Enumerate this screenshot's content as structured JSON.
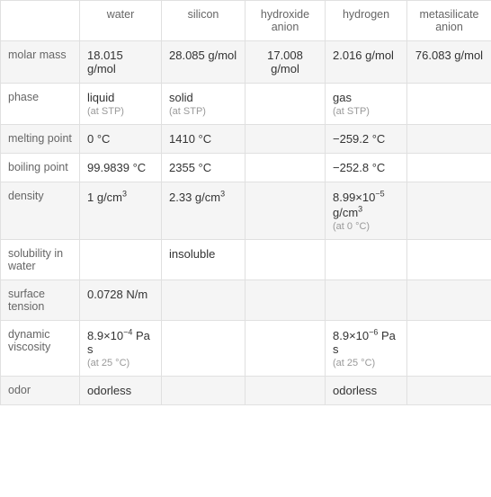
{
  "columns": [
    "water",
    "silicon",
    "hydroxide anion",
    "hydrogen",
    "metasilicate anion"
  ],
  "rows": [
    {
      "label": "molar mass",
      "cells": [
        {
          "main": "18.015 g/mol"
        },
        {
          "main": "28.085 g/mol"
        },
        {
          "main": "17.008 g/mol",
          "centered": true
        },
        {
          "main": "2.016 g/mol"
        },
        {
          "main": "76.083 g/mol",
          "centered": true
        }
      ]
    },
    {
      "label": "phase",
      "cells": [
        {
          "main": "liquid",
          "sub": "(at STP)"
        },
        {
          "main": "solid",
          "sub": "(at STP)"
        },
        {
          "main": ""
        },
        {
          "main": "gas",
          "sub": "(at STP)"
        },
        {
          "main": ""
        }
      ]
    },
    {
      "label": "melting point",
      "cells": [
        {
          "main": "0 °C"
        },
        {
          "main": "1410 °C"
        },
        {
          "main": ""
        },
        {
          "main": "−259.2 °C"
        },
        {
          "main": ""
        }
      ]
    },
    {
      "label": "boiling point",
      "cells": [
        {
          "main": "99.9839 °C"
        },
        {
          "main": "2355 °C"
        },
        {
          "main": ""
        },
        {
          "main": "−252.8 °C"
        },
        {
          "main": ""
        }
      ]
    },
    {
      "label": "density",
      "cells": [
        {
          "main_html": "1 g/cm<sup>3</sup>"
        },
        {
          "main_html": "2.33 g/cm<sup>3</sup>"
        },
        {
          "main": ""
        },
        {
          "main_html": "8.99×10<sup>−5</sup> g/cm<sup>3</sup>",
          "sub": "(at 0 °C)"
        },
        {
          "main": ""
        }
      ]
    },
    {
      "label": "solubility in water",
      "cells": [
        {
          "main": ""
        },
        {
          "main": "insoluble"
        },
        {
          "main": ""
        },
        {
          "main": ""
        },
        {
          "main": ""
        }
      ]
    },
    {
      "label": "surface tension",
      "cells": [
        {
          "main": "0.0728 N/m"
        },
        {
          "main": ""
        },
        {
          "main": ""
        },
        {
          "main": ""
        },
        {
          "main": ""
        }
      ]
    },
    {
      "label": "dynamic viscosity",
      "cells": [
        {
          "main_html": "8.9×10<sup>−4</sup> Pa s",
          "sub": "(at 25 °C)"
        },
        {
          "main": ""
        },
        {
          "main": ""
        },
        {
          "main_html": "8.9×10<sup>−6</sup> Pa s",
          "sub": "(at 25 °C)"
        },
        {
          "main": ""
        }
      ]
    },
    {
      "label": "odor",
      "cells": [
        {
          "main": "odorless"
        },
        {
          "main": ""
        },
        {
          "main": ""
        },
        {
          "main": "odorless"
        },
        {
          "main": ""
        }
      ]
    }
  ],
  "styling": {
    "border_color": "#e0e0e0",
    "row_alt_bg": "#f5f5f5",
    "row_bg": "#ffffff",
    "text_color": "#333333",
    "header_color": "#666666",
    "sub_color": "#999999",
    "font_size": 13,
    "sub_font_size": 11
  }
}
